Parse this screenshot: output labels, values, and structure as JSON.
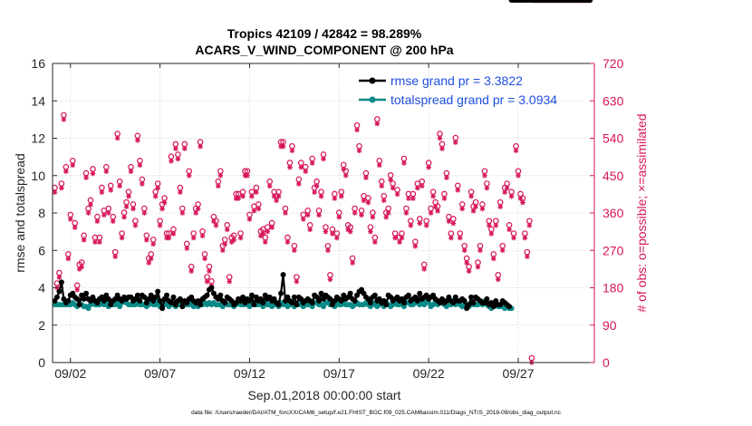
{
  "colors": {
    "rmse": "#000000",
    "totalspread": "#0b8a87",
    "obs": "#d6145a",
    "axis": "#262626",
    "legend_text": "#1f4fe0"
  },
  "chart_data": {
    "type": "line",
    "title_line1": "Tropics 42109 / 42842 = 98.289%",
    "title_line2": "ACARS_V_WIND_COMPONENT @ 200 hPa",
    "xlabel": "Sep.01,2018 00:00:00 start",
    "ylabel_left": "rmse and totalspread",
    "ylabel_right": "# of obs: o=possible; ×=assimilated",
    "footnote": "data file: /Users/raeder/DAI/ATM_forcXX/CAM6_setup/f.e21.FHIST_BGC.f09_025.CAM6assim.011/Diags_NTrS_2018-09/obs_diag_output.nc",
    "xlim_days": [
      0,
      30.25
    ],
    "ylim_left": [
      0,
      16
    ],
    "ylim_right": [
      0,
      720
    ],
    "xticks": [
      {
        "day": 1,
        "label": "09/02"
      },
      {
        "day": 6,
        "label": "09/07"
      },
      {
        "day": 11,
        "label": "09/12"
      },
      {
        "day": 16,
        "label": "09/17"
      },
      {
        "day": 21,
        "label": "09/22"
      },
      {
        "day": 26,
        "label": "09/27"
      }
    ],
    "yticks_left": [
      "0",
      "2",
      "4",
      "6",
      "8",
      "10",
      "12",
      "14",
      "16"
    ],
    "yticks_right": [
      "0",
      "90",
      "180",
      "270",
      "360",
      "450",
      "540",
      "630",
      "720"
    ],
    "legend": [
      {
        "name": "rmse grand pr = 3.3822"
      },
      {
        "name": "totalspread grand pr = 3.0934"
      }
    ],
    "x_days": [
      0.125,
      0.25,
      0.375,
      0.5,
      0.625,
      0.75,
      0.875,
      1,
      1.125,
      1.25,
      1.375,
      1.5,
      1.625,
      1.75,
      1.875,
      2,
      2.125,
      2.25,
      2.375,
      2.5,
      2.625,
      2.75,
      2.875,
      3,
      3.125,
      3.25,
      3.375,
      3.5,
      3.625,
      3.75,
      3.875,
      4,
      4.125,
      4.25,
      4.375,
      4.5,
      4.625,
      4.75,
      4.875,
      5,
      5.125,
      5.25,
      5.375,
      5.5,
      5.625,
      5.75,
      5.875,
      6,
      6.125,
      6.25,
      6.375,
      6.5,
      6.625,
      6.75,
      6.875,
      7,
      7.125,
      7.25,
      7.375,
      7.5,
      7.625,
      7.75,
      7.875,
      8,
      8.125,
      8.25,
      8.375,
      8.5,
      8.625,
      8.75,
      8.875,
      9,
      9.125,
      9.25,
      9.375,
      9.5,
      9.625,
      9.75,
      9.875,
      10,
      10.125,
      10.25,
      10.375,
      10.5,
      10.625,
      10.75,
      10.875,
      11,
      11.125,
      11.25,
      11.375,
      11.5,
      11.625,
      11.75,
      11.875,
      12,
      12.125,
      12.25,
      12.375,
      12.5,
      12.625,
      12.75,
      12.875,
      13,
      13.125,
      13.25,
      13.375,
      13.5,
      13.625,
      13.75,
      13.875,
      14,
      14.125,
      14.25,
      14.375,
      14.5,
      14.625,
      14.75,
      14.875,
      15,
      15.125,
      15.25,
      15.375,
      15.5,
      15.625,
      15.75,
      15.875,
      16,
      16.125,
      16.25,
      16.375,
      16.5,
      16.625,
      16.75,
      16.875,
      17,
      17.125,
      17.25,
      17.375,
      17.5,
      17.625,
      17.75,
      17.875,
      18,
      18.125,
      18.25,
      18.375,
      18.5,
      18.625,
      18.75,
      18.875,
      19,
      19.125,
      19.25,
      19.375,
      19.5,
      19.625,
      19.75,
      19.875,
      20,
      20.125,
      20.25,
      20.375,
      20.5,
      20.625,
      20.75,
      20.875,
      21,
      21.125,
      21.25,
      21.375,
      21.5,
      21.625,
      21.75,
      21.875,
      22,
      22.125,
      22.25,
      22.375,
      22.5,
      22.625,
      22.75,
      22.875,
      23,
      23.125,
      23.25,
      23.375,
      23.5,
      23.625,
      23.75,
      23.875,
      24,
      24.125,
      24.25,
      24.375,
      24.5,
      24.625,
      24.75,
      24.875,
      25,
      25.125,
      25.25,
      25.375,
      25.5,
      25.625,
      25.75,
      25.875,
      26,
      26.125,
      26.25,
      26.375,
      26.5,
      26.625,
      26.75,
      26.875,
      27,
      27.125,
      27.25,
      27.375,
      27.5,
      27.625,
      27.75,
      27.875,
      28,
      28.125,
      28.25,
      28.375,
      28.5,
      28.625,
      28.75,
      28.875,
      29,
      29.125,
      29.25,
      29.375,
      29.5,
      29.625,
      29.75,
      29.875,
      30
    ],
    "series": [
      {
        "name": "rmse",
        "values": [
          3.3,
          3.5,
          3.8,
          4.3,
          3.4,
          3.2,
          3.3,
          3.6,
          3.7,
          3.5,
          3.4,
          3.1,
          3.6,
          3.4,
          3.7,
          3.4,
          3.3,
          3.5,
          3.3,
          3.2,
          3.4,
          3.5,
          3.3,
          3.6,
          3.4,
          3.1,
          3.3,
          3.4,
          3.6,
          3.4,
          3.3,
          3.5,
          3.4,
          3.5,
          3.5,
          3.3,
          3.4,
          3.6,
          3.3,
          3.6,
          3.5,
          3.2,
          3.4,
          3.6,
          3.3,
          3.5,
          3.8,
          3.3,
          2.9,
          3.4,
          3.6,
          3.3,
          3.2,
          3.5,
          3.1,
          3.3,
          3.4,
          3.0,
          3.3,
          3.2,
          3.4,
          3.5,
          3.3,
          3.2,
          3.3,
          3.1,
          3.4,
          3.5,
          3.6,
          3.9,
          4.0,
          3.7,
          3.5,
          3.4,
          3.6,
          3.3,
          3.2,
          3.5,
          3.4,
          3.3,
          3.1,
          3.2,
          3.4,
          3.3,
          3.5,
          3.2,
          3.4,
          3.3,
          3.6,
          3.1,
          3.5,
          3.3,
          3.4,
          3.2,
          3.6,
          3.4,
          3.5,
          3.3,
          3.4,
          3.2,
          3.1,
          3.7,
          4.7,
          3.3,
          3.5,
          3.3,
          3.2,
          3.5,
          3.1,
          3.5,
          3.4,
          3.2,
          3.3,
          3.4,
          3.3,
          3.2,
          3.6,
          3.5,
          3.3,
          3.7,
          3.4,
          3.6,
          3.5,
          3.4,
          3.1,
          3.3,
          3.5,
          3.4,
          3.3,
          3.6,
          3.4,
          3.5,
          3.7,
          3.4,
          3.3,
          3.6,
          3.8,
          3.9,
          3.7,
          3.5,
          3.4,
          3.2,
          3.5,
          3.6,
          3.3,
          3.4,
          3.2,
          3.3,
          3.1,
          3.6,
          3.5,
          3.3,
          3.4,
          3.5,
          3.3,
          3.4,
          3.2,
          3.5,
          3.6,
          3.3,
          3.4,
          3.5,
          3.3,
          3.7,
          3.4,
          3.5,
          3.6,
          3.4,
          3.5,
          3.6,
          3.4,
          3.3,
          3.2,
          3.4,
          3.2,
          3.3,
          3.5,
          3.3,
          3.2,
          3.5,
          3.3,
          3.3,
          3.4,
          3.3,
          2.9,
          3.1,
          3.5,
          3.2,
          3.5,
          3.4,
          3.3,
          3.2,
          3.2,
          3.4,
          3.1,
          3.2,
          3.0,
          3.3,
          3.1,
          3.1,
          3.3,
          3.2,
          3.1,
          3.0
        ]
      },
      {
        "name": "totalspread",
        "values": [
          3.1,
          3.1,
          3.1,
          3.1,
          3.1,
          3.1,
          3.1,
          3.1,
          3.2,
          3.1,
          3.0,
          3.1,
          3.1,
          3.0,
          3.0,
          2.9,
          3.1,
          3.2,
          3.1,
          3.1,
          3.1,
          3.2,
          3.1,
          3.2,
          3.0,
          3.1,
          3.1,
          3.1,
          3.2,
          3.0,
          3.2,
          3.3,
          3.2,
          3.1,
          3.1,
          3.1,
          3.1,
          3.2,
          3.1,
          3.1,
          3.1,
          3.0,
          3.1,
          3.2,
          3.1,
          3.1,
          3.3,
          3.0,
          3.1,
          3.1,
          3.2,
          3.0,
          3.1,
          3.1,
          3.0,
          3.1,
          3.2,
          3.0,
          3.1,
          3.1,
          3.1,
          3.2,
          3.0,
          3.2,
          3.0,
          3.1,
          3.1,
          3.2,
          3.1,
          3.2,
          3.1,
          3.2,
          3.1,
          3.1,
          3.1,
          3.0,
          3.2,
          3.1,
          3.1,
          3.1,
          3.0,
          3.1,
          3.2,
          3.1,
          3.1,
          3.1,
          3.2,
          3.0,
          3.2,
          3.1,
          3.1,
          3.1,
          3.2,
          3.0,
          3.2,
          3.1,
          3.1,
          3.0,
          3.1,
          3.1,
          3.0,
          3.2,
          3.1,
          3.2,
          3.0,
          3.1,
          3.1,
          3.0,
          3.1,
          3.1,
          3.2,
          3.0,
          3.1,
          3.1,
          3.1,
          3.0,
          3.2,
          3.2,
          3.1,
          3.1,
          3.0,
          3.2,
          3.2,
          3.1,
          3.1,
          3.0,
          3.2,
          3.1,
          3.1,
          3.2,
          3.1,
          3.1,
          3.1,
          3.0,
          3.1,
          3.2,
          3.1,
          3.1,
          3.1,
          3.2,
          3.1,
          3.0,
          3.2,
          3.1,
          3.0,
          3.1,
          3.2,
          3.0,
          3.2,
          3.1,
          3.0,
          3.1,
          3.2,
          3.1,
          3.1,
          3.2,
          3.0,
          3.2,
          3.2,
          3.1,
          3.1,
          3.2,
          3.2,
          3.1,
          3.2,
          3.1,
          3.3,
          3.2,
          3.0,
          3.1,
          3.3,
          3.1,
          3.2,
          3.2,
          3.1,
          3.0,
          3.2,
          3.1,
          3.3,
          3.1,
          3.2,
          3.1,
          3.0,
          3.1,
          3.1,
          3.0,
          3.2,
          3.1,
          3.1,
          3.1,
          3.3,
          3.1,
          3.3,
          3.1,
          3.0,
          2.9,
          3.0,
          3.1,
          3.0,
          3.0,
          3.0,
          2.9,
          3.0,
          2.9,
          2.9
        ]
      },
      {
        "name": "possible",
        "values": [
          410,
          180,
          205,
          420,
          585,
          460,
          250,
          345,
          475,
          325,
          175,
          225,
          230,
          295,
          445,
          360,
          380,
          455,
          290,
          340,
          290,
          410,
          355,
          460,
          360,
          415,
          340,
          255,
          540,
          425,
          300,
          350,
          375,
          400,
          460,
          370,
          330,
          535,
          475,
          430,
          360,
          295,
          240,
          250,
          285,
          400,
          420,
          330,
          370,
          385,
          300,
          300,
          485,
          310,
          515,
          490,
          410,
          360,
          515,
          275,
          450,
          220,
          300,
          360,
          370,
          520,
          305,
          250,
          195,
          220,
          185,
          340,
          330,
          425,
          450,
          270,
          285,
          320,
          195,
          290,
          295,
          395,
          395,
          300,
          400,
          450,
          450,
          345,
          400,
          365,
          410,
          370,
          305,
          310,
          290,
          315,
          425,
          325,
          400,
          390,
          400,
          520,
          520,
          360,
          290,
          470,
          510,
          270,
          195,
          430,
          470,
          345,
          460,
          355,
          320,
          480,
          410,
          425,
          355,
          400,
          490,
          315,
          270,
          200,
          310,
          395,
          300,
          350,
          400,
          465,
          450,
          320,
          315,
          240,
          360,
          560,
          510,
          355,
          390,
          445,
          385,
          315,
          350,
          290,
          575,
          475,
          425,
          390,
          350,
          360,
          440,
          420,
          300,
          405,
          290,
          300,
          480,
          360,
          395,
          330,
          395,
          280,
          420,
          335,
          425,
          225,
          330,
          470,
          360,
          400,
          375,
          365,
          540,
          515,
          395,
          445,
          340,
          300,
          335,
          530,
          415,
          300,
          370,
          270,
          240,
          220,
          400,
          365,
          375,
          230,
          270,
          370,
          450,
          420,
          330,
          310,
          250,
          330,
          200,
          375,
          270,
          410,
          420,
          320,
          400,
          300,
          510,
          450,
          395,
          385,
          300,
          255,
          330,
          0
        ]
      },
      {
        "name": "assimilated",
        "values": [
          410,
          180,
          205,
          420,
          585,
          460,
          250,
          345,
          475,
          325,
          175,
          225,
          230,
          295,
          445,
          360,
          380,
          455,
          290,
          340,
          290,
          410,
          355,
          460,
          360,
          415,
          340,
          255,
          540,
          425,
          300,
          350,
          375,
          400,
          460,
          370,
          330,
          535,
          475,
          430,
          360,
          295,
          240,
          250,
          285,
          400,
          420,
          330,
          370,
          385,
          300,
          300,
          485,
          310,
          515,
          490,
          410,
          360,
          515,
          275,
          450,
          220,
          300,
          360,
          370,
          520,
          305,
          250,
          195,
          220,
          185,
          340,
          330,
          425,
          450,
          270,
          285,
          320,
          195,
          290,
          295,
          395,
          395,
          300,
          400,
          450,
          450,
          345,
          400,
          365,
          410,
          370,
          305,
          310,
          290,
          315,
          425,
          325,
          400,
          390,
          400,
          520,
          520,
          360,
          290,
          470,
          510,
          270,
          195,
          430,
          470,
          345,
          460,
          355,
          320,
          480,
          410,
          425,
          355,
          400,
          490,
          315,
          270,
          200,
          310,
          395,
          300,
          350,
          400,
          465,
          450,
          320,
          315,
          240,
          360,
          560,
          510,
          355,
          390,
          445,
          385,
          315,
          350,
          290,
          575,
          475,
          425,
          390,
          350,
          360,
          440,
          420,
          300,
          405,
          290,
          300,
          480,
          360,
          395,
          330,
          395,
          280,
          420,
          335,
          425,
          225,
          330,
          470,
          360,
          400,
          375,
          365,
          540,
          515,
          395,
          445,
          340,
          300,
          335,
          530,
          415,
          300,
          370,
          270,
          240,
          220,
          400,
          365,
          375,
          230,
          270,
          370,
          450,
          420,
          330,
          310,
          250,
          330,
          200,
          375,
          270,
          410,
          420,
          320,
          400,
          300,
          510,
          450,
          395,
          385,
          300,
          255,
          330,
          0
        ]
      }
    ]
  }
}
